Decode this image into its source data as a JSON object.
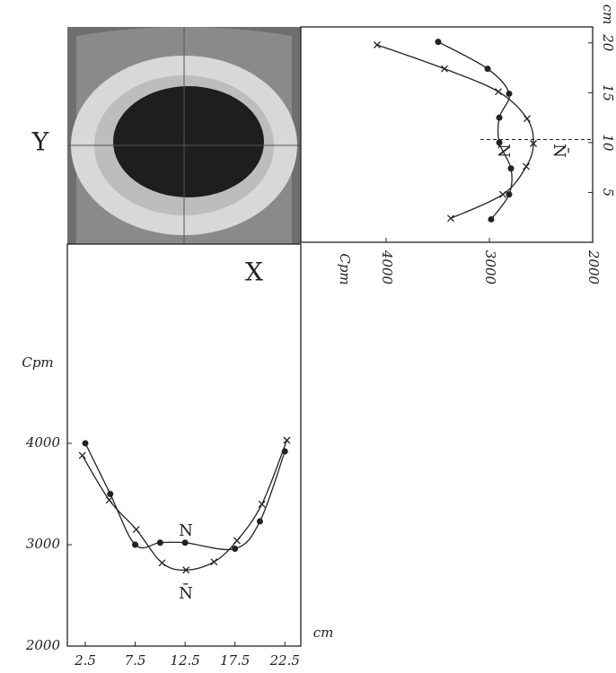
{
  "chart_data": [
    {
      "type": "line",
      "orientation": "vertical",
      "title": "Y",
      "xlabel": "Cpm",
      "ylabel": "cm",
      "xlim": [
        4826,
        2000
      ],
      "xticks": [
        4000,
        3000,
        2000
      ],
      "ylim": [
        0,
        21.6
      ],
      "yticks": [
        5,
        10,
        15,
        20
      ],
      "reference_line": 10.3,
      "series": [
        {
          "name": "N",
          "marker": "dot",
          "color": "#222",
          "y": [
            20.1,
            17.4,
            14.9,
            12.5,
            10.0,
            7.4,
            4.8,
            2.3
          ],
          "values": [
            3496,
            3017,
            2809,
            2904,
            2904,
            2791,
            2809,
            2983
          ]
        },
        {
          "name": "N̄",
          "marker": "cross",
          "color": "#222",
          "y": [
            19.8,
            17.4,
            15.1,
            12.4,
            9.9,
            7.6,
            4.8,
            2.4
          ],
          "values": [
            4087,
            3435,
            2913,
            2635,
            2574,
            2643,
            2870,
            3374
          ]
        }
      ]
    },
    {
      "type": "line",
      "title": "X",
      "xlabel": "cm",
      "ylabel": "Cpm",
      "xlim": [
        0.7,
        24.1
      ],
      "xticks": [
        2.5,
        7.5,
        12.5,
        17.5,
        22.5
      ],
      "ylim": [
        2000,
        5965
      ],
      "yticks": [
        2000,
        3000,
        4000
      ],
      "series": [
        {
          "name": "N",
          "marker": "dot",
          "color": "#222",
          "x": [
            2.5,
            5,
            7.5,
            10,
            12.5,
            17.5,
            20,
            22.5
          ],
          "values": [
            4000,
            3500,
            3000,
            3020,
            3020,
            2960,
            3230,
            3920
          ]
        },
        {
          "name": "N̄",
          "marker": "cross",
          "color": "#222",
          "x": [
            2.2,
            4.9,
            7.6,
            10.2,
            12.6,
            15.4,
            17.7,
            20.2,
            22.7
          ],
          "values": [
            3880,
            3440,
            3150,
            2820,
            2750,
            2830,
            3040,
            3400,
            4030
          ]
        }
      ]
    }
  ]
}
